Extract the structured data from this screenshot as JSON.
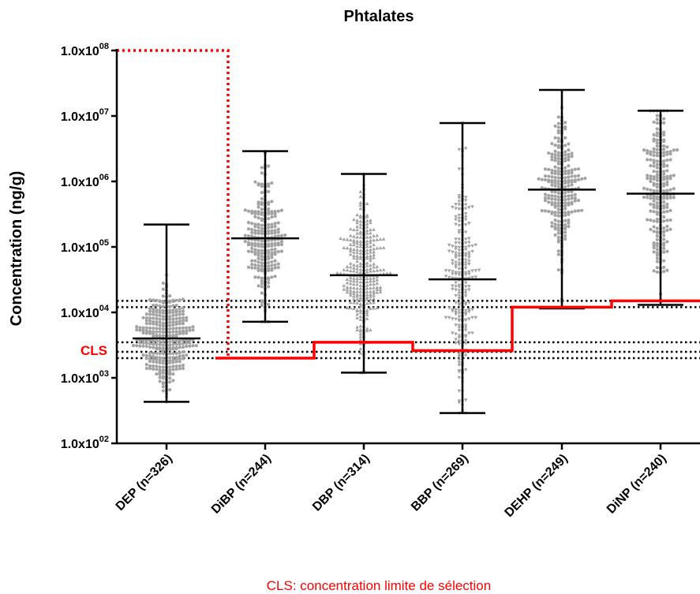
{
  "chart_data": {
    "type": "scatter",
    "title": "Phtalates",
    "ylabel": "Concentration (ng/g)",
    "xlabel": "",
    "yscale": "log",
    "ylim": [
      100,
      100000000
    ],
    "yticks": [
      {
        "value": 100,
        "mantissa": "1.0x10",
        "exp": "02"
      },
      {
        "value": 1000,
        "mantissa": "1.0x10",
        "exp": "03"
      },
      {
        "value": 10000,
        "mantissa": "1.0x10",
        "exp": "04"
      },
      {
        "value": 100000,
        "mantissa": "1.0x10",
        "exp": "05"
      },
      {
        "value": 1000000,
        "mantissa": "1.0x10",
        "exp": "06"
      },
      {
        "value": 10000000,
        "mantissa": "1.0x10",
        "exp": "07"
      },
      {
        "value": 100000000,
        "mantissa": "1.0x10",
        "exp": "08"
      }
    ],
    "categories": [
      "DEP (n=326)",
      "DiBP (n=244)",
      "DBP (n=314)",
      "BBP (n=269)",
      "DEHP (n=249)",
      "DiNP (n=240)"
    ],
    "series": [
      {
        "category": "DEP (n=326)",
        "n": 326,
        "marker": "circle",
        "min": 430,
        "max": 220000,
        "median": 4000,
        "p_low": 900,
        "p_high": 30000
      },
      {
        "category": "DiBP (n=244)",
        "n": 244,
        "marker": "circle",
        "min": 7200,
        "max": 2900000,
        "median": 135000,
        "p_low": 20000,
        "p_high": 1500000
      },
      {
        "category": "DBP (n=314)",
        "n": 314,
        "marker": "triangle-up",
        "min": 1200,
        "max": 1300000,
        "median": 37000,
        "p_low": 3000,
        "p_high": 500000
      },
      {
        "category": "BBP (n=269)",
        "n": 269,
        "marker": "triangle-down",
        "min": 290,
        "max": 7800000,
        "median": 32000,
        "p_low": 2500,
        "p_high": 4500000
      },
      {
        "category": "DEHP (n=249)",
        "n": 249,
        "marker": "circle",
        "min": 11500,
        "max": 25000000,
        "median": 750000,
        "p_low": 50000,
        "p_high": 10000000
      },
      {
        "category": "DiNP (n=240)",
        "n": 240,
        "marker": "circle",
        "min": 13000,
        "max": 12000000,
        "median": 650000,
        "p_low": 30000,
        "p_high": 8000000
      }
    ],
    "cls_line": {
      "label": "CLS",
      "color": "#ff0000",
      "levels": [
        100000000,
        2000,
        3500,
        2600,
        12000,
        15000
      ]
    },
    "reference_lines": [
      15000,
      12000,
      3500,
      2500,
      2000
    ],
    "grid": false,
    "colors": {
      "points": "#a3a3a3",
      "bars": "#000000",
      "cls": "#ff0000",
      "reference": "#000000"
    }
  },
  "footnote": "CLS: concentration limite de sélection"
}
